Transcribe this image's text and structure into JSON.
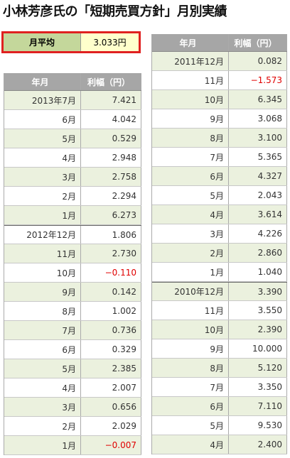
{
  "header": {
    "title": "小林芳彦氏の「短期売買方針」月別実績"
  },
  "summary": {
    "label": "月平均",
    "value": "3.033円"
  },
  "left_table": {
    "columns": [
      "年月",
      "利幅（円）"
    ],
    "rows": [
      [
        "2013年7月",
        "7.421"
      ],
      [
        "6月",
        "4.042"
      ],
      [
        "5月",
        "0.529"
      ],
      [
        "4月",
        "2.948"
      ],
      [
        "3月",
        "2.758"
      ],
      [
        "2月",
        "2.294"
      ],
      [
        "1月",
        "6.273"
      ],
      [
        "2012年12月",
        "1.806"
      ],
      [
        "11月",
        "2.730"
      ],
      [
        "10月",
        "−0.110"
      ],
      [
        "9月",
        "0.142"
      ],
      [
        "8月",
        "1.002"
      ],
      [
        "7月",
        "0.736"
      ],
      [
        "6月",
        "0.329"
      ],
      [
        "5月",
        "2.385"
      ],
      [
        "4月",
        "2.007"
      ],
      [
        "3月",
        "0.656"
      ],
      [
        "2月",
        "2.029"
      ],
      [
        "1月",
        "−0.007"
      ]
    ]
  },
  "right_table": {
    "columns": [
      "年月",
      "利幅（円）"
    ],
    "rows": [
      [
        "2011年12月",
        "0.082"
      ],
      [
        "11月",
        "−1.573"
      ],
      [
        "10月",
        "6.345"
      ],
      [
        "9月",
        "3.068"
      ],
      [
        "8月",
        "3.100"
      ],
      [
        "7月",
        "5.365"
      ],
      [
        "6月",
        "4.327"
      ],
      [
        "5月",
        "2.043"
      ],
      [
        "4月",
        "3.614"
      ],
      [
        "3月",
        "4.226"
      ],
      [
        "2月",
        "2.860"
      ],
      [
        "1月",
        "1.040"
      ],
      [
        "2010年12月",
        "3.390"
      ],
      [
        "11月",
        "3.550"
      ],
      [
        "10月",
        "2.390"
      ],
      [
        "9月",
        "10.000"
      ],
      [
        "8月",
        "5.120"
      ],
      [
        "7月",
        "3.350"
      ],
      [
        "6月",
        "7.110"
      ],
      [
        "5月",
        "9.530"
      ],
      [
        "4月",
        "2.400"
      ]
    ]
  }
}
